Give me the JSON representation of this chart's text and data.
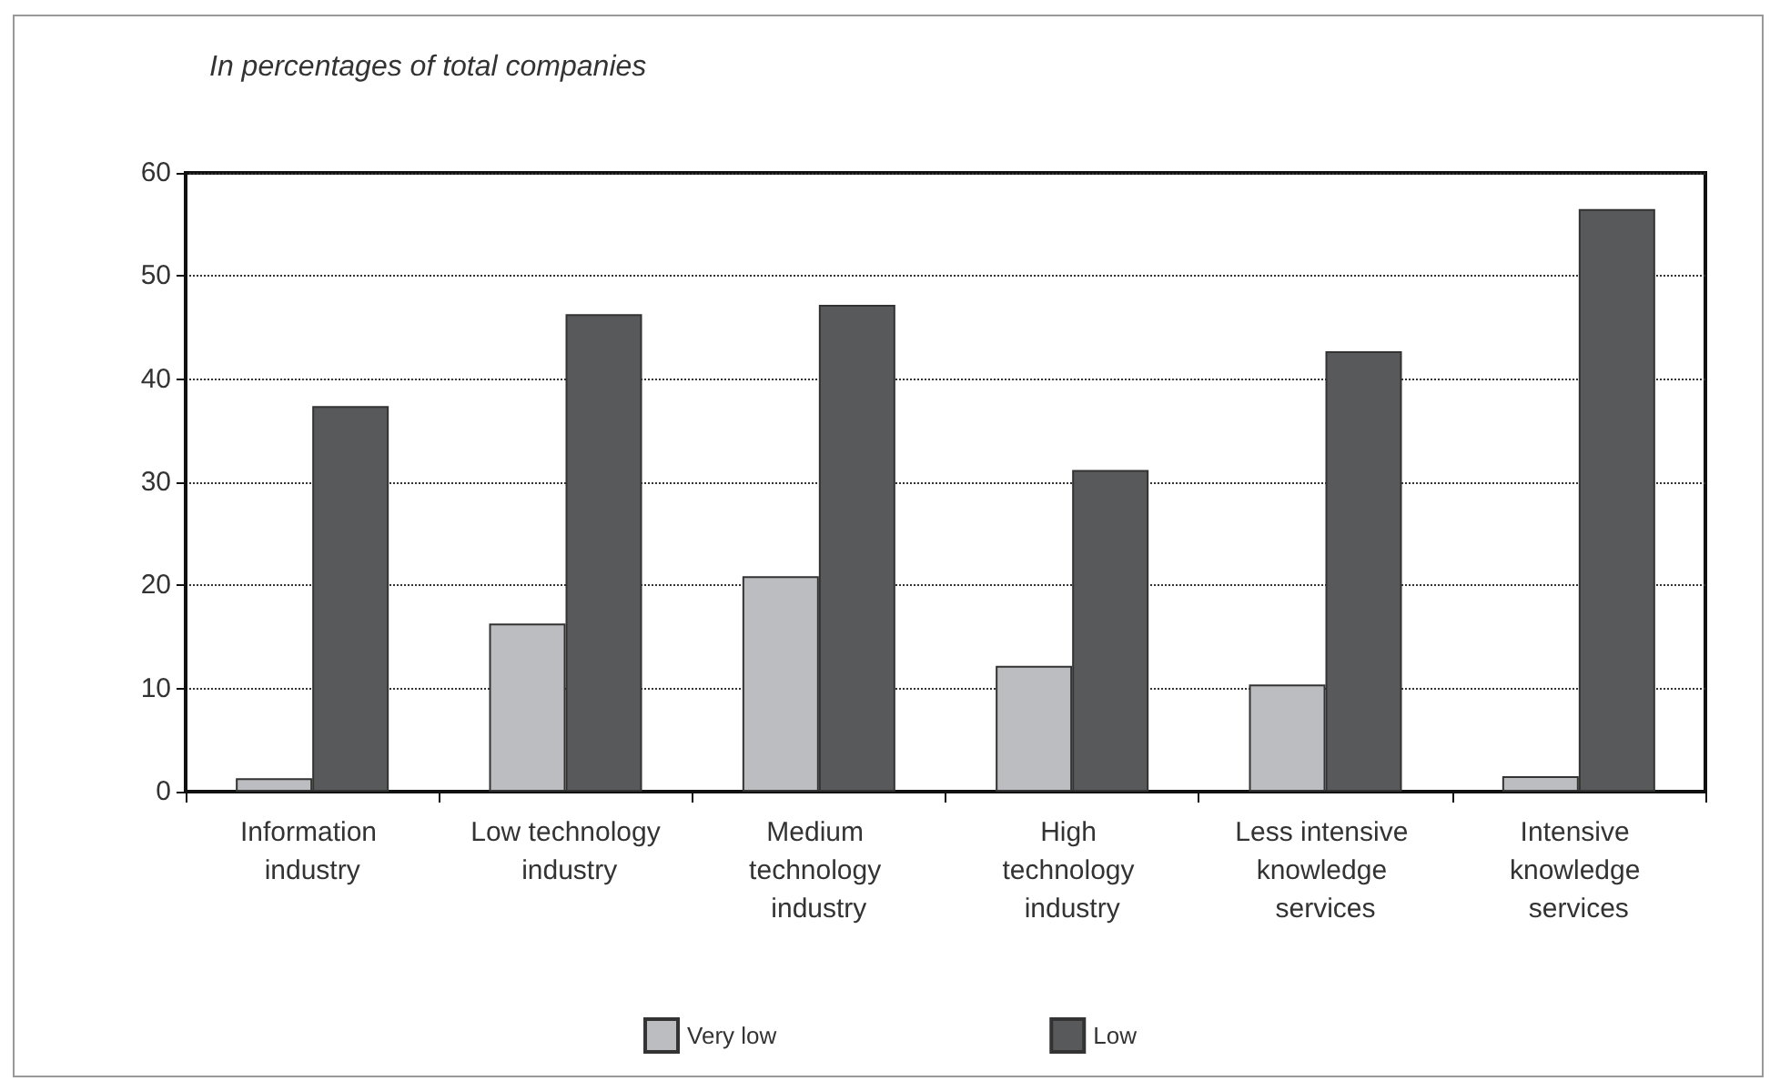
{
  "chart_data": {
    "type": "bar",
    "title": "In percentages of total companies",
    "categories": [
      "Information industry",
      "Low technology industry",
      "Medium technology industry",
      "High technology industry",
      "Less intensive knowledge services",
      "Intensive knowledge services"
    ],
    "series": [
      {
        "name": "Very low",
        "color": "#bcbdc0",
        "values": [
          1.3,
          16.3,
          20.9,
          12.2,
          10.4,
          1.5
        ]
      },
      {
        "name": "Low",
        "color": "#58595b",
        "values": [
          37.4,
          46.3,
          47.2,
          31.2,
          42.7,
          56.5
        ]
      }
    ],
    "ylim": [
      0,
      60
    ],
    "yticks": [
      0,
      10,
      20,
      30,
      40,
      50,
      60
    ],
    "grid": "y",
    "legend": "bottom"
  }
}
